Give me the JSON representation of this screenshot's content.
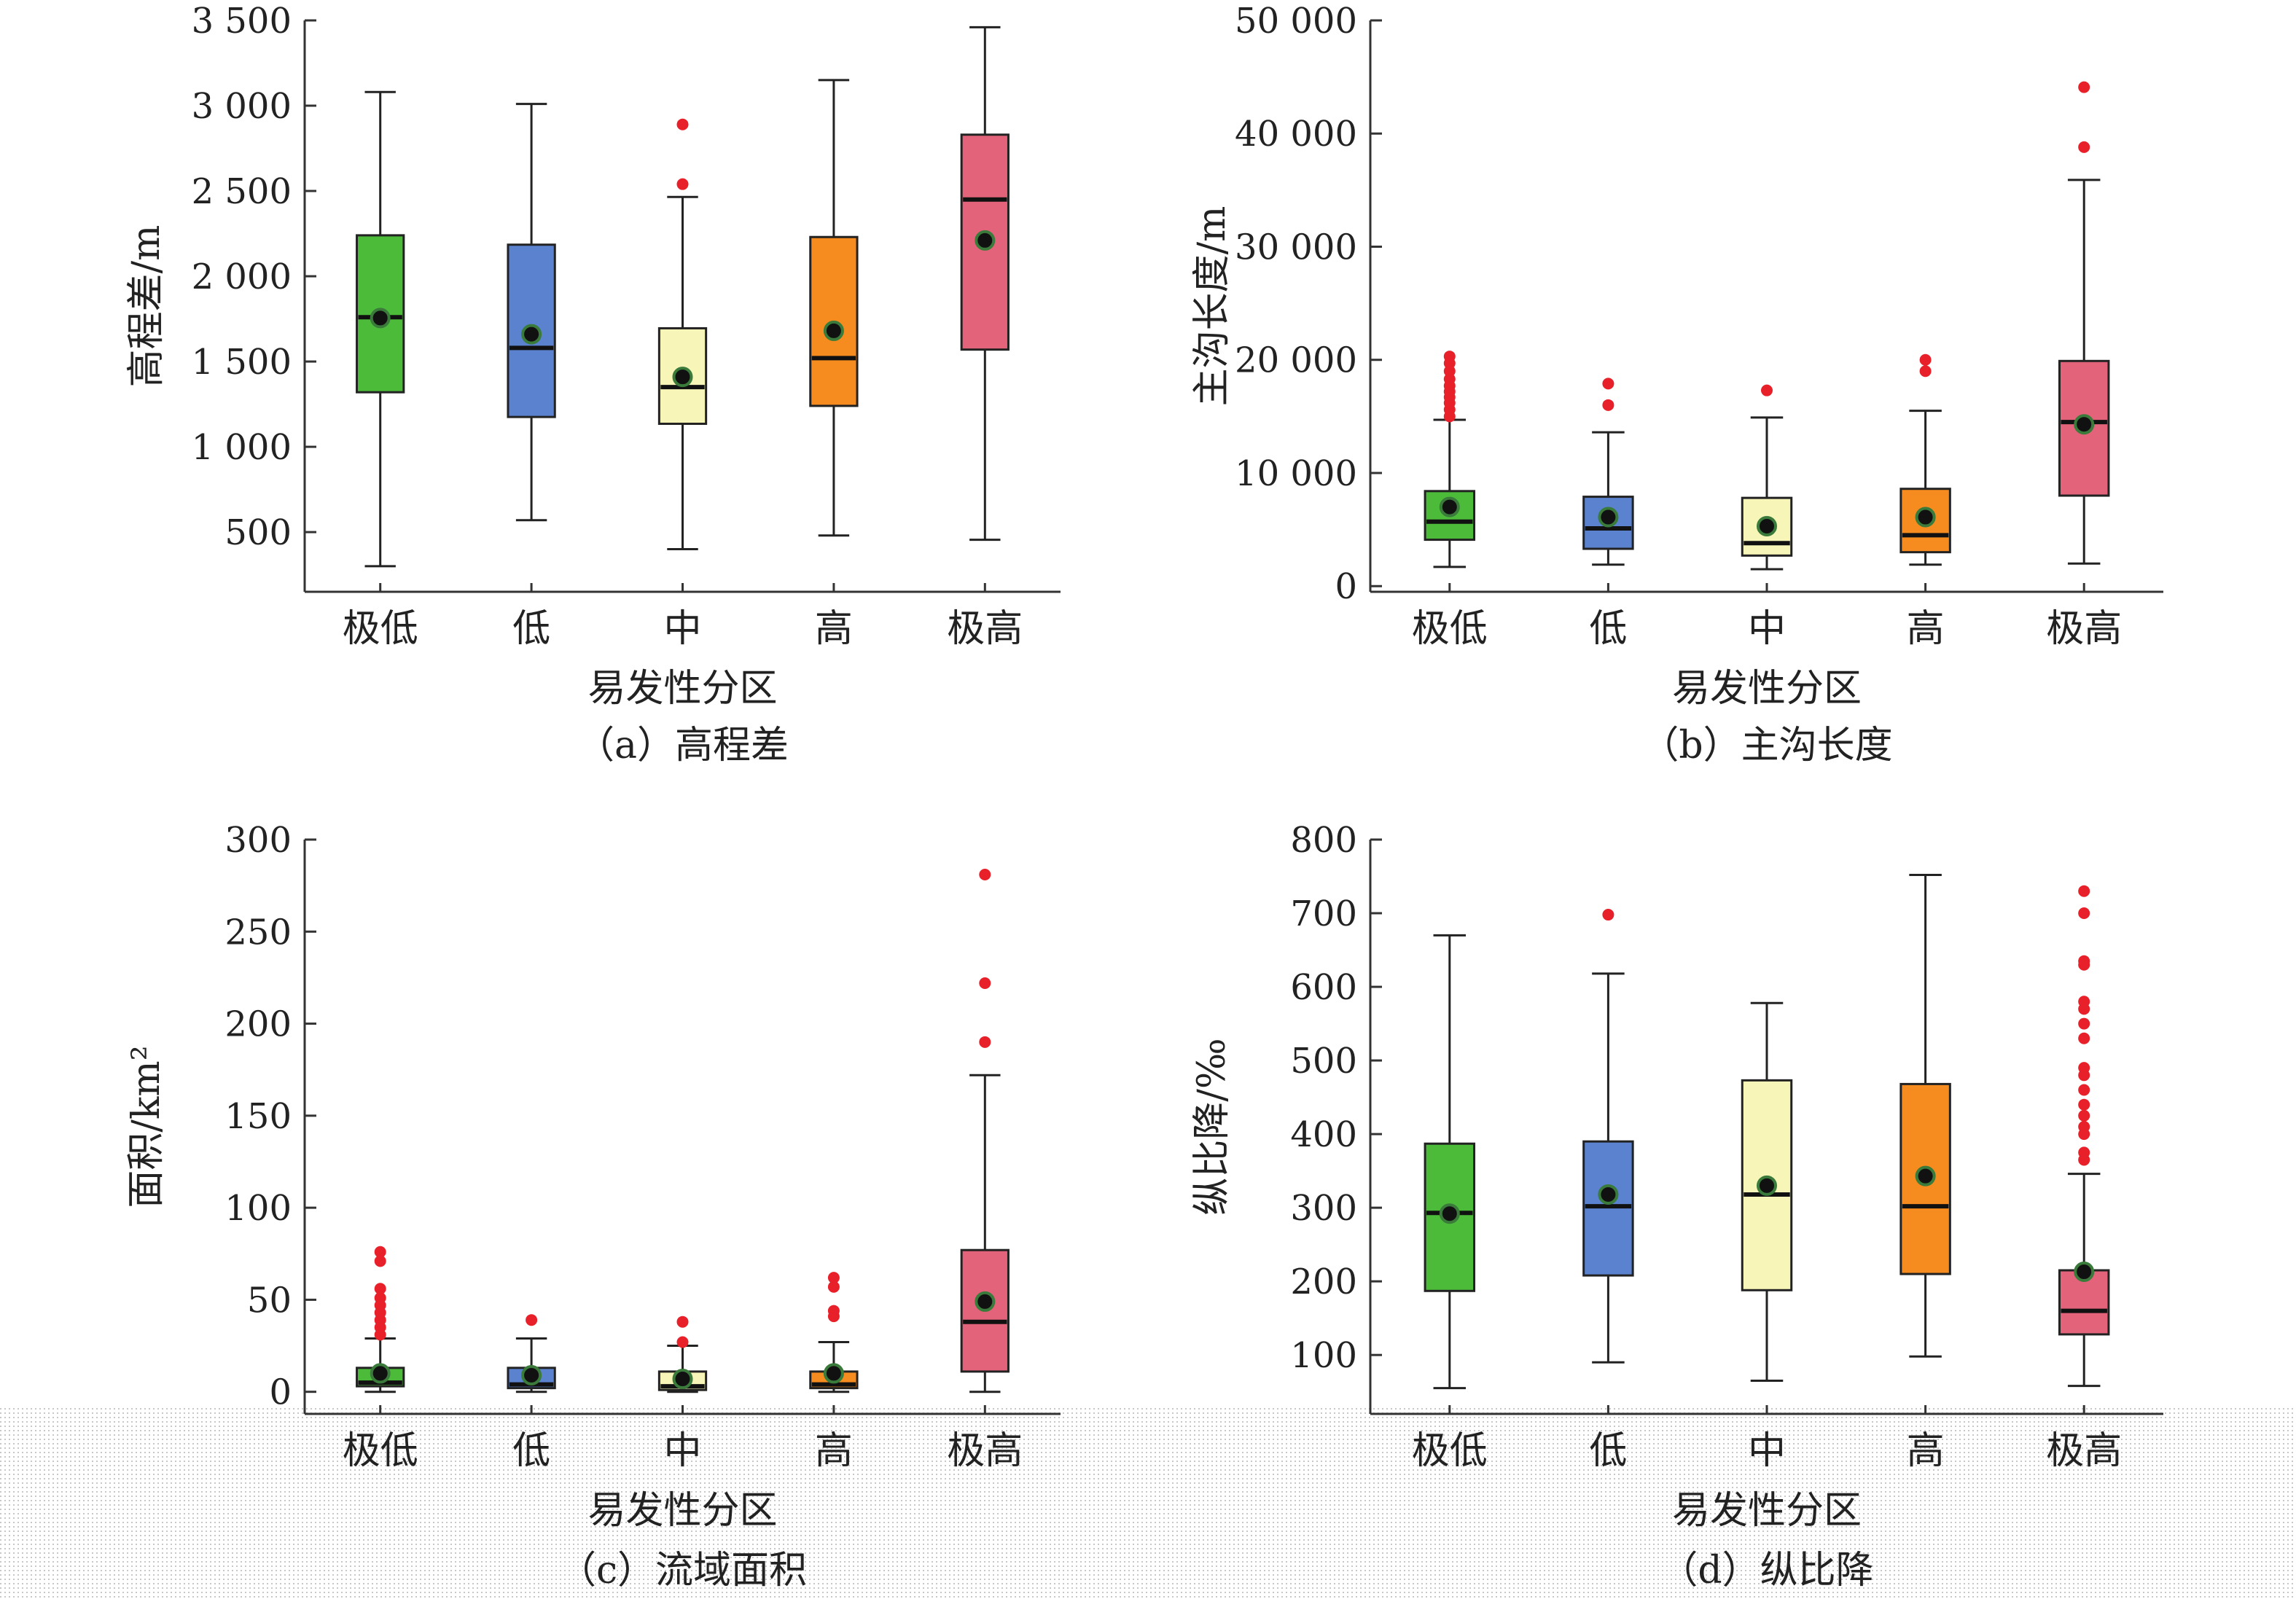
{
  "categories": [
    "极低",
    "低",
    "中",
    "高",
    "极高"
  ],
  "colors": [
    "#4dbb3a",
    "#5b82cf",
    "#f7f6b8",
    "#f68c1f",
    "#e3647a"
  ],
  "chart_data": [
    {
      "type": "box",
      "id": "a",
      "caption": "（a）高程差",
      "xlabel": "易发性分区",
      "ylabel": "高程差/m",
      "ylim": [
        150,
        3500
      ],
      "yticks": [
        500,
        1000,
        1500,
        2000,
        2500,
        3000,
        3500
      ],
      "ytick_labels": [
        "500",
        "1 000",
        "1 500",
        "2 000",
        "2 500",
        "3 000",
        "3 500"
      ],
      "boxes": [
        {
          "category": "极低",
          "min": 300,
          "q1": 1320,
          "median": 1760,
          "q3": 2240,
          "max": 3080,
          "mean": 1755,
          "outliers": []
        },
        {
          "category": "低",
          "min": 570,
          "q1": 1175,
          "median": 1580,
          "q3": 2185,
          "max": 3010,
          "mean": 1660,
          "outliers": []
        },
        {
          "category": "中",
          "min": 400,
          "q1": 1135,
          "median": 1350,
          "q3": 1695,
          "max": 2465,
          "mean": 1410,
          "outliers": [
            2540,
            2890
          ]
        },
        {
          "category": "高",
          "min": 480,
          "q1": 1240,
          "median": 1520,
          "q3": 2230,
          "max": 3150,
          "mean": 1680,
          "outliers": []
        },
        {
          "category": "极高",
          "min": 455,
          "q1": 1570,
          "median": 2450,
          "q3": 2830,
          "max": 3460,
          "mean": 2210,
          "outliers": []
        }
      ]
    },
    {
      "type": "box",
      "id": "b",
      "caption": "（b）主沟长度",
      "xlabel": "易发性分区",
      "ylabel": "主沟长度/m",
      "ylim": [
        -500,
        50000
      ],
      "yticks": [
        0,
        10000,
        20000,
        30000,
        40000,
        50000
      ],
      "ytick_labels": [
        "0",
        "10 000",
        "20 000",
        "30 000",
        "40 000",
        "50 000"
      ],
      "boxes": [
        {
          "category": "极低",
          "min": 1700,
          "q1": 4100,
          "median": 5700,
          "q3": 8400,
          "max": 14700,
          "mean": 7000,
          "outliers": [
            15000,
            15600,
            16200,
            16700,
            17200,
            17700,
            18300,
            19000,
            19700,
            20300
          ]
        },
        {
          "category": "低",
          "min": 1900,
          "q1": 3300,
          "median": 5100,
          "q3": 7900,
          "max": 13600,
          "mean": 6100,
          "outliers": [
            16000,
            17900
          ]
        },
        {
          "category": "中",
          "min": 1500,
          "q1": 2700,
          "median": 3800,
          "q3": 7800,
          "max": 14900,
          "mean": 5300,
          "outliers": [
            17300
          ]
        },
        {
          "category": "高",
          "min": 1900,
          "q1": 3000,
          "median": 4500,
          "q3": 8600,
          "max": 15500,
          "mean": 6100,
          "outliers": [
            19000,
            20000
          ]
        },
        {
          "category": "极高",
          "min": 2000,
          "q1": 8000,
          "median": 14500,
          "q3": 19900,
          "max": 35900,
          "mean": 14300,
          "outliers": [
            38800,
            44100
          ]
        }
      ]
    },
    {
      "type": "box",
      "id": "c",
      "caption": "（c）流域面积",
      "xlabel": "易发性分区",
      "ylabel": "面积/km²",
      "ylim": [
        -12,
        300
      ],
      "yticks": [
        0,
        50,
        100,
        150,
        200,
        250,
        300
      ],
      "ytick_labels": [
        "0",
        "50",
        "100",
        "150",
        "200",
        "250",
        "300"
      ],
      "boxes": [
        {
          "category": "极低",
          "min": 0,
          "q1": 3,
          "median": 5,
          "q3": 13,
          "max": 29,
          "mean": 10,
          "outliers": [
            31,
            35,
            39,
            43,
            47,
            51,
            56,
            71,
            76
          ]
        },
        {
          "category": "低",
          "min": 0,
          "q1": 2,
          "median": 4,
          "q3": 13,
          "max": 29,
          "mean": 9,
          "outliers": [
            39
          ]
        },
        {
          "category": "中",
          "min": 0,
          "q1": 1,
          "median": 3,
          "q3": 11,
          "max": 25,
          "mean": 7,
          "outliers": [
            27,
            38
          ]
        },
        {
          "category": "高",
          "min": 0,
          "q1": 2,
          "median": 4,
          "q3": 11,
          "max": 27,
          "mean": 10,
          "outliers": [
            41,
            44,
            57,
            62
          ]
        },
        {
          "category": "极高",
          "min": 0,
          "q1": 11,
          "median": 38,
          "q3": 77,
          "max": 172,
          "mean": 49,
          "outliers": [
            190,
            222,
            281
          ]
        }
      ]
    },
    {
      "type": "box",
      "id": "d",
      "caption": "（d）纵比降",
      "xlabel": "易发性分区",
      "ylabel": "纵比降/‰",
      "ylim": [
        20,
        800
      ],
      "yticks": [
        100,
        200,
        300,
        400,
        500,
        600,
        700,
        800
      ],
      "ytick_labels": [
        "100",
        "200",
        "300",
        "400",
        "500",
        "600",
        "700",
        "800"
      ],
      "boxes": [
        {
          "category": "极低",
          "min": 55,
          "q1": 187,
          "median": 293,
          "q3": 387,
          "max": 670,
          "mean": 292,
          "outliers": []
        },
        {
          "category": "低",
          "min": 90,
          "q1": 208,
          "median": 302,
          "q3": 390,
          "max": 618,
          "mean": 318,
          "outliers": [
            698
          ]
        },
        {
          "category": "中",
          "min": 65,
          "q1": 188,
          "median": 318,
          "q3": 473,
          "max": 578,
          "mean": 330,
          "outliers": []
        },
        {
          "category": "高",
          "min": 98,
          "q1": 210,
          "median": 302,
          "q3": 468,
          "max": 752,
          "mean": 343,
          "outliers": []
        },
        {
          "category": "极高",
          "min": 58,
          "q1": 128,
          "median": 160,
          "q3": 215,
          "max": 346,
          "mean": 213,
          "outliers": [
            365,
            375,
            400,
            410,
            425,
            440,
            460,
            480,
            490,
            530,
            550,
            570,
            580,
            630,
            635,
            700,
            730
          ]
        }
      ]
    }
  ]
}
